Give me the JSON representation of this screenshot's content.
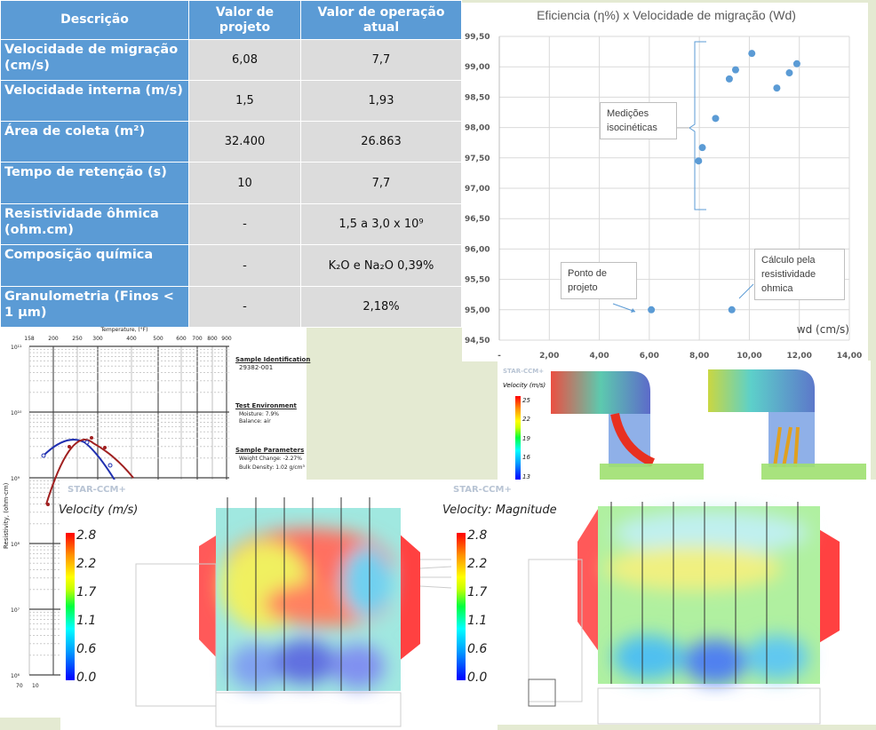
{
  "table": {
    "headers": [
      "Descrição",
      "Valor de projeto",
      "Valor de operação atual"
    ],
    "rows": [
      {
        "desc": "Velocidade de migração (cm/s)",
        "projeto": "6,08",
        "atual": "7,7"
      },
      {
        "desc": "Velocidade interna (m/s)",
        "projeto": "1,5",
        "atual": "1,93"
      },
      {
        "desc": "Área de coleta (m²)",
        "projeto": "32.400",
        "atual": "26.863"
      },
      {
        "desc": "Tempo de retenção (s)",
        "projeto": "10",
        "atual": "7,7"
      },
      {
        "desc": "Resistividade ôhmica (ohm.cm)",
        "projeto": "-",
        "atual": "1,5 a 3,0 x 10⁹"
      },
      {
        "desc": "Composição química",
        "projeto": "-",
        "atual": "K₂O e Na₂O  0,39%"
      },
      {
        "desc": "Granulometria (Finos < 1 µm)",
        "projeto": "-",
        "atual": "2,18%"
      }
    ]
  },
  "chart_data": {
    "type": "scatter",
    "title": "Eficiencia (η%) x Velocidade de migração (Wd)",
    "xlabel": "wd (cm/s)",
    "ylabel": "",
    "xlim": [
      0,
      14
    ],
    "ylim": [
      94.5,
      99.5
    ],
    "xticks": [
      "-",
      "2,00",
      "4,00",
      "6,00",
      "8,00",
      "10,00",
      "12,00",
      "14,00"
    ],
    "yticks": [
      "94,50",
      "95,00",
      "95,50",
      "96,00",
      "96,50",
      "97,00",
      "97,50",
      "98,00",
      "98,50",
      "99,00",
      "99,50"
    ],
    "grid": true,
    "color": "#5b9bd5",
    "points": [
      [
        6.08,
        95.0
      ],
      [
        9.3,
        95.0
      ],
      [
        7.97,
        97.45
      ],
      [
        8.12,
        97.67
      ],
      [
        8.65,
        98.15
      ],
      [
        9.2,
        98.8
      ],
      [
        9.45,
        98.95
      ],
      [
        10.1,
        99.22
      ],
      [
        11.1,
        98.65
      ],
      [
        11.6,
        98.9
      ],
      [
        11.9,
        99.05
      ]
    ],
    "annotations": [
      "Medições isocinéticas",
      "Ponto de projeto",
      "Cálculo pela resistividade ohmica"
    ]
  },
  "resistivity": {
    "xtitle": "Temperature, (°F)",
    "xticks": [
      "158",
      "200",
      "250",
      "300",
      "400",
      "500",
      "600",
      "700",
      "800",
      "900"
    ],
    "ylabel": "Resistivity, (ohm-cm)",
    "yticks": [
      "10¹¹",
      "10¹⁰",
      "10⁹",
      "10⁸",
      "10⁷",
      "10⁶"
    ],
    "bottom_ticks": [
      "70",
      "10"
    ],
    "sample_id_title": "Sample Identification",
    "sample_id": "29382-001",
    "env_title": "Test Environment",
    "moisture": "Moisture:  7.9%",
    "balance": "Balance:   air",
    "params_title": "Sample Parameters",
    "weight": "Weight Change:  -2.27%",
    "density": "Bulk Density:  1.02 g/cm³"
  },
  "cfd_small": {
    "logo": "STAR-CCM+",
    "legend_title": "Velocity (m/s)",
    "ticks": [
      "25",
      "22",
      "19",
      "16",
      "13"
    ]
  },
  "cfd_left": {
    "logo": "STAR-CCM+",
    "legend_title": "Velocity (m/s)",
    "ticks": [
      "2.8",
      "2.2",
      "1.7",
      "1.1",
      "0.6",
      "0.0"
    ]
  },
  "cfd_right": {
    "logo": "STAR-CCM+",
    "legend_title": "Velocity: Magnitude",
    "ticks": [
      "2.8",
      "2.2",
      "1.7",
      "1.1",
      "0.6",
      "0.0"
    ]
  }
}
